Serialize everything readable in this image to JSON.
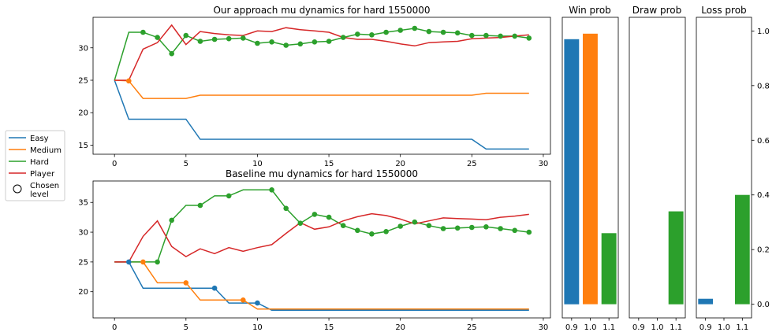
{
  "colors": {
    "easy": "#1f77b4",
    "medium": "#ff7f0e",
    "hard": "#2ca02c",
    "player": "#d62728"
  },
  "legend": {
    "items": [
      {
        "label": "Easy",
        "color": "#1f77b4"
      },
      {
        "label": "Medium",
        "color": "#ff7f0e"
      },
      {
        "label": "Hard",
        "color": "#2ca02c"
      },
      {
        "label": "Player",
        "color": "#d62728"
      }
    ],
    "chosen_label_1": "Chosen",
    "chosen_label_2": "level"
  },
  "chart_data": [
    {
      "type": "line",
      "title": "Our approach mu dynamics for hard 1550000",
      "xlim": [
        -1.5,
        30.5
      ],
      "ylim": [
        13.6,
        34.7
      ],
      "xticks": [
        0,
        5,
        10,
        15,
        20,
        25,
        30
      ],
      "yticks": [
        15,
        20,
        25,
        30
      ],
      "x": [
        0,
        1,
        2,
        3,
        4,
        5,
        6,
        7,
        8,
        9,
        10,
        11,
        12,
        13,
        14,
        15,
        16,
        17,
        18,
        19,
        20,
        21,
        22,
        23,
        24,
        25,
        26,
        27,
        28,
        29
      ],
      "series": [
        {
          "name": "Easy",
          "color": "#1f77b4",
          "values": [
            25,
            19,
            19,
            19,
            19,
            19,
            15.9,
            15.9,
            15.9,
            15.9,
            15.9,
            15.9,
            15.9,
            15.9,
            15.9,
            15.9,
            15.9,
            15.9,
            15.9,
            15.9,
            15.9,
            15.9,
            15.9,
            15.9,
            15.9,
            15.9,
            14.4,
            14.4,
            14.4,
            14.4
          ]
        },
        {
          "name": "Medium",
          "color": "#ff7f0e",
          "values": [
            25,
            24.9,
            22.2,
            22.2,
            22.2,
            22.2,
            22.7,
            22.7,
            22.7,
            22.7,
            22.7,
            22.7,
            22.7,
            22.7,
            22.7,
            22.7,
            22.7,
            22.7,
            22.7,
            22.7,
            22.7,
            22.7,
            22.7,
            22.7,
            22.7,
            22.7,
            23,
            23,
            23,
            23
          ]
        },
        {
          "name": "Hard",
          "color": "#2ca02c",
          "values": [
            25,
            32.4,
            32.4,
            31.6,
            29.1,
            31.9,
            31,
            31.3,
            31.4,
            31.5,
            30.7,
            30.9,
            30.4,
            30.6,
            30.9,
            31,
            31.6,
            32.1,
            32,
            32.4,
            32.7,
            33,
            32.5,
            32.4,
            32.3,
            31.9,
            31.9,
            31.8,
            31.8,
            31.5
          ]
        },
        {
          "name": "Player",
          "color": "#d62728",
          "values": [
            25,
            25,
            29.8,
            30.8,
            33.5,
            30.5,
            32.5,
            32.2,
            32,
            31.9,
            32.6,
            32.5,
            33.1,
            32.8,
            32.6,
            32.4,
            31.6,
            31.3,
            31.3,
            31,
            30.6,
            30.3,
            30.8,
            30.9,
            31,
            31.4,
            31.5,
            31.6,
            31.8,
            32
          ]
        }
      ],
      "chosen": [
        {
          "x": 1,
          "y": 24.9,
          "color": "#ff7f0e"
        },
        {
          "x": 2,
          "y": 32.4
        },
        {
          "x": 3,
          "y": 31.6
        },
        {
          "x": 4,
          "y": 29.1
        },
        {
          "x": 5,
          "y": 31.9
        },
        {
          "x": 6,
          "y": 31
        },
        {
          "x": 7,
          "y": 31.3
        },
        {
          "x": 8,
          "y": 31.4
        },
        {
          "x": 9,
          "y": 31.5
        },
        {
          "x": 10,
          "y": 30.7
        },
        {
          "x": 11,
          "y": 30.9
        },
        {
          "x": 12,
          "y": 30.4
        },
        {
          "x": 13,
          "y": 30.6
        },
        {
          "x": 14,
          "y": 30.9
        },
        {
          "x": 15,
          "y": 31
        },
        {
          "x": 16,
          "y": 31.6
        },
        {
          "x": 17,
          "y": 32.1
        },
        {
          "x": 18,
          "y": 32
        },
        {
          "x": 19,
          "y": 32.4
        },
        {
          "x": 20,
          "y": 32.7
        },
        {
          "x": 21,
          "y": 33
        },
        {
          "x": 22,
          "y": 32.5
        },
        {
          "x": 23,
          "y": 32.4
        },
        {
          "x": 24,
          "y": 32.3
        },
        {
          "x": 25,
          "y": 31.9
        },
        {
          "x": 26,
          "y": 31.9
        },
        {
          "x": 27,
          "y": 31.8
        },
        {
          "x": 28,
          "y": 31.8
        },
        {
          "x": 29,
          "y": 31.5
        }
      ]
    },
    {
      "type": "line",
      "title": "Baseline mu dynamics for hard 1550000",
      "xlim": [
        -1.5,
        30.5
      ],
      "ylim": [
        15.6,
        38.6
      ],
      "xticks": [
        0,
        5,
        10,
        15,
        20,
        25,
        30
      ],
      "yticks": [
        20,
        25,
        30,
        35
      ],
      "x": [
        0,
        1,
        2,
        3,
        4,
        5,
        6,
        7,
        8,
        9,
        10,
        11,
        12,
        13,
        14,
        15,
        16,
        17,
        18,
        19,
        20,
        21,
        22,
        23,
        24,
        25,
        26,
        27,
        28,
        29
      ],
      "series": [
        {
          "name": "Easy",
          "color": "#1f77b4",
          "values": [
            25,
            25,
            20.6,
            20.6,
            20.6,
            20.6,
            20.6,
            20.6,
            18.1,
            18.1,
            18.1,
            16.9,
            16.9,
            16.9,
            16.9,
            16.9,
            16.9,
            16.9,
            16.9,
            16.9,
            16.9,
            16.9,
            16.9,
            16.9,
            16.9,
            16.9,
            16.9,
            16.9,
            16.9,
            16.9
          ]
        },
        {
          "name": "Medium",
          "color": "#ff7f0e",
          "values": [
            25,
            25,
            25,
            21.5,
            21.5,
            21.5,
            18.6,
            18.6,
            18.6,
            18.6,
            17.1,
            17.1,
            17.1,
            17.1,
            17.1,
            17.1,
            17.1,
            17.1,
            17.1,
            17.1,
            17.1,
            17.1,
            17.1,
            17.1,
            17.1,
            17.1,
            17.1,
            17.1,
            17.1,
            17.1
          ]
        },
        {
          "name": "Hard",
          "color": "#2ca02c",
          "values": [
            25,
            25,
            25,
            25,
            32,
            34.5,
            34.5,
            36.1,
            36.1,
            37.1,
            37.1,
            37.1,
            34,
            31.5,
            33,
            32.5,
            31.1,
            30.3,
            29.7,
            30.1,
            31,
            31.7,
            31.1,
            30.6,
            30.7,
            30.8,
            30.9,
            30.6,
            30.3,
            30
          ]
        },
        {
          "name": "Player",
          "color": "#d62728",
          "values": [
            25,
            25,
            29.3,
            31.9,
            27.6,
            25.9,
            27.2,
            26.4,
            27.4,
            26.8,
            27.4,
            27.9,
            29.8,
            31.6,
            30.5,
            30.9,
            31.9,
            32.6,
            33.1,
            32.8,
            32.2,
            31.4,
            31.9,
            32.4,
            32.3,
            32.2,
            32.1,
            32.5,
            32.7,
            33
          ]
        }
      ],
      "chosen": [
        {
          "x": 1,
          "y": 25,
          "color": "#1f77b4"
        },
        {
          "x": 2,
          "y": 25,
          "color": "#ff7f0e"
        },
        {
          "x": 3,
          "y": 25
        },
        {
          "x": 4,
          "y": 32
        },
        {
          "x": 5,
          "y": 21.5,
          "color": "#ff7f0e"
        },
        {
          "x": 6,
          "y": 34.5
        },
        {
          "x": 7,
          "y": 20.6,
          "color": "#1f77b4"
        },
        {
          "x": 8,
          "y": 36.1
        },
        {
          "x": 9,
          "y": 18.6,
          "color": "#ff7f0e"
        },
        {
          "x": 10,
          "y": 18.1,
          "color": "#1f77b4"
        },
        {
          "x": 11,
          "y": 37.1
        },
        {
          "x": 12,
          "y": 34
        },
        {
          "x": 13,
          "y": 31.5
        },
        {
          "x": 14,
          "y": 33
        },
        {
          "x": 15,
          "y": 32.5
        },
        {
          "x": 16,
          "y": 31.1
        },
        {
          "x": 17,
          "y": 30.3
        },
        {
          "x": 18,
          "y": 29.7
        },
        {
          "x": 19,
          "y": 30.1
        },
        {
          "x": 20,
          "y": 31
        },
        {
          "x": 21,
          "y": 31.7
        },
        {
          "x": 22,
          "y": 31.1
        },
        {
          "x": 23,
          "y": 30.6
        },
        {
          "x": 24,
          "y": 30.7
        },
        {
          "x": 25,
          "y": 30.8
        },
        {
          "x": 26,
          "y": 30.9
        },
        {
          "x": 27,
          "y": 30.6
        },
        {
          "x": 28,
          "y": 30.3
        },
        {
          "x": 29,
          "y": 30
        }
      ]
    },
    {
      "type": "bar",
      "title": "Win prob",
      "categories": [
        "0.9",
        "1.0",
        "1.1"
      ],
      "values": [
        0.97,
        0.99,
        0.26
      ],
      "colors": [
        "#1f77b4",
        "#ff7f0e",
        "#2ca02c"
      ],
      "ylim": [
        -0.05,
        1.05
      ]
    },
    {
      "type": "bar",
      "title": "Draw prob",
      "categories": [
        "0.9",
        "1.0",
        "1.1"
      ],
      "values": [
        0,
        0,
        0.34
      ],
      "colors": [
        "#1f77b4",
        "#ff7f0e",
        "#2ca02c"
      ],
      "ylim": [
        -0.05,
        1.05
      ]
    },
    {
      "type": "bar",
      "title": "Loss prob",
      "categories": [
        "0.9",
        "1.0",
        "1.1"
      ],
      "values": [
        0.02,
        0,
        0.4
      ],
      "colors": [
        "#1f77b4",
        "#ff7f0e",
        "#2ca02c"
      ],
      "ylim": [
        -0.05,
        1.05
      ],
      "yticks": [
        0.0,
        0.2,
        0.4,
        0.6,
        0.8,
        1.0
      ],
      "ytick_labels": [
        "0.0",
        "0.2",
        "0.4",
        "0.6",
        "0.8",
        "1.0"
      ]
    }
  ]
}
